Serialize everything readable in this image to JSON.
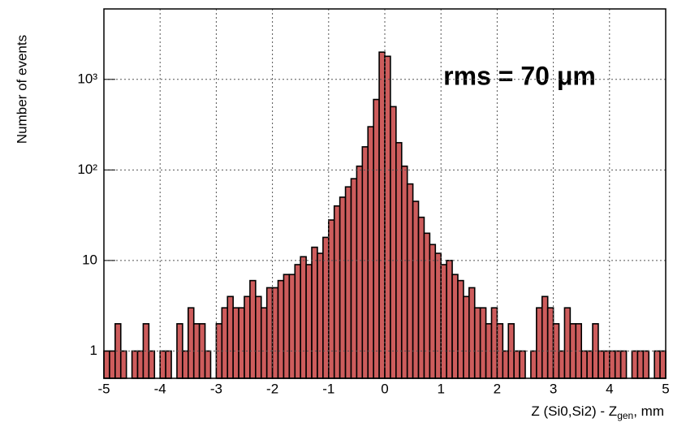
{
  "chart_data": {
    "type": "histogram",
    "y_label": "Number of events",
    "x_label": {
      "main": "Z (Si0,Si2) - Z",
      "sub": "gen",
      "suffix": ",  mm"
    },
    "annotation": "rms = 70  μm",
    "color": "#cd5c5c",
    "log_y": true,
    "grid": true,
    "bins": [
      -5,
      -4.9,
      -4.8,
      -4.7,
      -4.6,
      -4.5,
      -4.4,
      -4.3,
      -4.2,
      -4.1,
      -4,
      -3.9,
      -3.8,
      -3.7,
      -3.6,
      -3.5,
      -3.4,
      -3.3,
      -3.2,
      -3.1,
      -3,
      -2.9,
      -2.8,
      -2.7,
      -2.6,
      -2.5,
      -2.4,
      -2.3,
      -2.2,
      -2.1,
      -2,
      -1.9,
      -1.8,
      -1.7,
      -1.6,
      -1.5,
      -1.4,
      -1.3,
      -1.2,
      -1.1,
      -1,
      -0.9,
      -0.8,
      -0.7,
      -0.6,
      -0.5,
      -0.4,
      -0.3,
      -0.2,
      -0.1,
      0,
      0.1,
      0.2,
      0.3,
      0.4,
      0.5,
      0.6,
      0.7,
      0.8,
      0.9,
      1,
      1.1,
      1.2,
      1.3,
      1.4,
      1.5,
      1.6,
      1.7,
      1.8,
      1.9,
      2,
      2.1,
      2.2,
      2.3,
      2.4,
      2.5,
      2.6,
      2.7,
      2.8,
      2.9,
      3,
      3.1,
      3.2,
      3.3,
      3.4,
      3.5,
      3.6,
      3.7,
      3.8,
      3.9,
      4,
      4.1,
      4.2,
      4.3,
      4.4,
      4.5,
      4.6,
      4.7,
      4.8,
      4.9,
      5
    ],
    "values": [
      1,
      1,
      2,
      1,
      0,
      1,
      1,
      2,
      1,
      0,
      1,
      1,
      0,
      2,
      1,
      3,
      2,
      2,
      1,
      0,
      2,
      3,
      4,
      3,
      3,
      4,
      6,
      4,
      3,
      5,
      5,
      6,
      7,
      7,
      9,
      11,
      9,
      14,
      12,
      18,
      28,
      40,
      50,
      65,
      80,
      110,
      180,
      300,
      600,
      2000,
      1800,
      500,
      200,
      110,
      70,
      45,
      30,
      20,
      15,
      12,
      9,
      10,
      7,
      6,
      4,
      5,
      3,
      3,
      2,
      3,
      2,
      1,
      2,
      1,
      1,
      0,
      1,
      3,
      4,
      3,
      2,
      1,
      3,
      2,
      2,
      1,
      1,
      2,
      1,
      1,
      1,
      1,
      1,
      0,
      1,
      1,
      1,
      0,
      1,
      1
    ],
    "xlim": [
      -5,
      5
    ],
    "xticks": [
      -5,
      -4,
      -3,
      -2,
      -1,
      0,
      1,
      2,
      3,
      4,
      5
    ],
    "ylim": [
      0.5,
      6000
    ],
    "yticks": [
      1,
      10,
      {
        "value": 100,
        "label": "10²"
      },
      {
        "value": 1000,
        "label": "10³"
      }
    ]
  }
}
